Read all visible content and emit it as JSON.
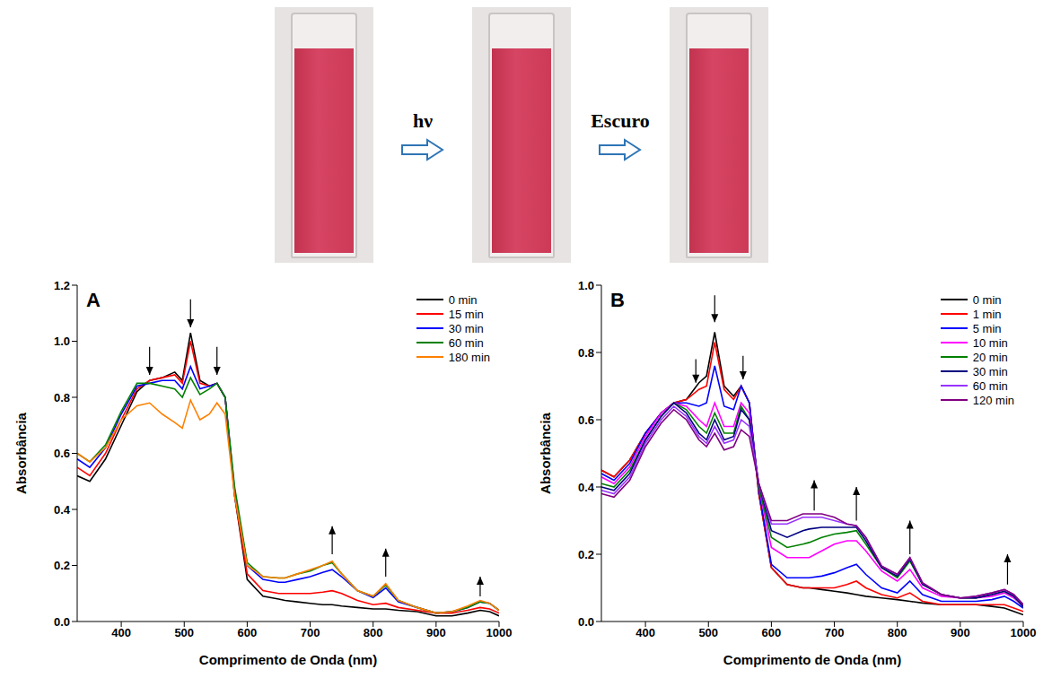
{
  "header": {
    "steps": [
      "hν",
      "Escuro"
    ]
  },
  "chart_data": [
    {
      "type": "line",
      "panel": "A",
      "x_label": "Comprimento de Onda (nm)",
      "y_label": "Absorbância",
      "x": [
        330,
        350,
        375,
        400,
        425,
        445,
        465,
        485,
        497,
        510,
        525,
        540,
        552,
        565,
        580,
        600,
        625,
        650,
        660,
        680,
        700,
        720,
        735,
        750,
        775,
        800,
        820,
        840,
        870,
        900,
        925,
        950,
        970,
        985,
        1000
      ],
      "series": [
        {
          "name": "0 min",
          "color": "#000000",
          "values": [
            0.52,
            0.5,
            0.58,
            0.7,
            0.82,
            0.86,
            0.87,
            0.89,
            0.86,
            1.03,
            0.86,
            0.84,
            0.85,
            0.8,
            0.45,
            0.15,
            0.09,
            0.08,
            0.075,
            0.07,
            0.065,
            0.06,
            0.06,
            0.055,
            0.05,
            0.045,
            0.045,
            0.04,
            0.035,
            0.02,
            0.02,
            0.03,
            0.04,
            0.035,
            0.02
          ]
        },
        {
          "name": "15 min",
          "color": "#ff0000",
          "values": [
            0.55,
            0.52,
            0.6,
            0.72,
            0.83,
            0.86,
            0.87,
            0.88,
            0.85,
            1.0,
            0.85,
            0.84,
            0.85,
            0.8,
            0.45,
            0.17,
            0.11,
            0.1,
            0.1,
            0.1,
            0.1,
            0.105,
            0.11,
            0.1,
            0.075,
            0.06,
            0.065,
            0.05,
            0.04,
            0.03,
            0.03,
            0.04,
            0.05,
            0.045,
            0.03
          ]
        },
        {
          "name": "30 min",
          "color": "#0000ff",
          "values": [
            0.58,
            0.55,
            0.62,
            0.74,
            0.84,
            0.85,
            0.86,
            0.86,
            0.83,
            0.91,
            0.83,
            0.84,
            0.85,
            0.8,
            0.47,
            0.2,
            0.15,
            0.14,
            0.14,
            0.15,
            0.16,
            0.175,
            0.185,
            0.16,
            0.11,
            0.085,
            0.12,
            0.07,
            0.05,
            0.03,
            0.035,
            0.05,
            0.07,
            0.065,
            0.04
          ]
        },
        {
          "name": "60 min",
          "color": "#008000",
          "values": [
            0.6,
            0.57,
            0.63,
            0.75,
            0.85,
            0.85,
            0.84,
            0.83,
            0.8,
            0.87,
            0.81,
            0.83,
            0.85,
            0.8,
            0.48,
            0.21,
            0.16,
            0.155,
            0.155,
            0.17,
            0.18,
            0.2,
            0.21,
            0.17,
            0.11,
            0.09,
            0.13,
            0.075,
            0.05,
            0.03,
            0.035,
            0.05,
            0.07,
            0.065,
            0.04
          ]
        },
        {
          "name": "180 min",
          "color": "#ff8000",
          "values": [
            0.6,
            0.57,
            0.62,
            0.72,
            0.77,
            0.78,
            0.74,
            0.71,
            0.69,
            0.79,
            0.72,
            0.74,
            0.78,
            0.74,
            0.45,
            0.2,
            0.16,
            0.155,
            0.155,
            0.17,
            0.185,
            0.2,
            0.215,
            0.17,
            0.11,
            0.09,
            0.135,
            0.075,
            0.05,
            0.03,
            0.035,
            0.055,
            0.075,
            0.065,
            0.04
          ]
        }
      ],
      "xlim": [
        330,
        1000
      ],
      "xticks": [
        400,
        500,
        600,
        700,
        800,
        900,
        1000
      ],
      "ylim": [
        0,
        1.2
      ],
      "yticks": [
        {
          "value": 0,
          "label": "0.0"
        },
        0.2,
        0.4,
        0.6,
        0.8,
        {
          "value": 1,
          "label": "1.0"
        },
        1.2
      ],
      "grid": false,
      "legend": "upper right",
      "arrows": [
        {
          "x": 445,
          "from": 0.98,
          "to": 0.88
        },
        {
          "x": 510,
          "from": 1.15,
          "to": 1.05
        },
        {
          "x": 552,
          "from": 0.98,
          "to": 0.88
        },
        {
          "x": 735,
          "from": 0.24,
          "to": 0.34
        },
        {
          "x": 820,
          "from": 0.16,
          "to": 0.26
        },
        {
          "x": 970,
          "from": 0.09,
          "to": 0.16
        }
      ]
    },
    {
      "type": "line",
      "panel": "B",
      "x_label": "Comprimento de Onda (nm)",
      "y_label": "Absorbância",
      "x": [
        330,
        350,
        375,
        400,
        425,
        445,
        465,
        485,
        497,
        510,
        525,
        540,
        552,
        565,
        580,
        600,
        625,
        650,
        660,
        680,
        700,
        720,
        735,
        750,
        775,
        800,
        820,
        840,
        870,
        900,
        925,
        950,
        970,
        985,
        1000
      ],
      "series": [
        {
          "name": "0 min",
          "color": "#000000",
          "values": [
            0.45,
            0.43,
            0.48,
            0.56,
            0.62,
            0.65,
            0.66,
            0.71,
            0.73,
            0.86,
            0.7,
            0.67,
            0.7,
            0.65,
            0.38,
            0.16,
            0.11,
            0.1,
            0.1,
            0.095,
            0.09,
            0.085,
            0.08,
            0.075,
            0.07,
            0.065,
            0.06,
            0.055,
            0.05,
            0.05,
            0.05,
            0.045,
            0.04,
            0.03,
            0.02
          ]
        },
        {
          "name": "1 min",
          "color": "#ff0000",
          "values": [
            0.45,
            0.43,
            0.48,
            0.56,
            0.62,
            0.65,
            0.66,
            0.69,
            0.7,
            0.83,
            0.69,
            0.66,
            0.7,
            0.65,
            0.38,
            0.16,
            0.11,
            0.1,
            0.1,
            0.1,
            0.1,
            0.11,
            0.12,
            0.1,
            0.08,
            0.07,
            0.085,
            0.06,
            0.05,
            0.05,
            0.05,
            0.05,
            0.05,
            0.04,
            0.03
          ]
        },
        {
          "name": "5 min",
          "color": "#0000ff",
          "values": [
            0.44,
            0.42,
            0.47,
            0.56,
            0.62,
            0.65,
            0.65,
            0.64,
            0.65,
            0.76,
            0.64,
            0.63,
            0.7,
            0.65,
            0.39,
            0.17,
            0.13,
            0.13,
            0.13,
            0.135,
            0.145,
            0.16,
            0.17,
            0.14,
            0.1,
            0.085,
            0.12,
            0.08,
            0.06,
            0.06,
            0.06,
            0.065,
            0.075,
            0.06,
            0.04
          ]
        },
        {
          "name": "10 min",
          "color": "#ff00ff",
          "values": [
            0.43,
            0.41,
            0.46,
            0.55,
            0.62,
            0.65,
            0.64,
            0.6,
            0.58,
            0.65,
            0.58,
            0.58,
            0.65,
            0.62,
            0.4,
            0.22,
            0.19,
            0.19,
            0.19,
            0.21,
            0.23,
            0.24,
            0.24,
            0.21,
            0.15,
            0.12,
            0.155,
            0.1,
            0.075,
            0.07,
            0.07,
            0.075,
            0.085,
            0.07,
            0.045
          ]
        },
        {
          "name": "20 min",
          "color": "#008000",
          "values": [
            0.41,
            0.4,
            0.45,
            0.54,
            0.61,
            0.65,
            0.63,
            0.58,
            0.56,
            0.62,
            0.56,
            0.56,
            0.64,
            0.6,
            0.4,
            0.25,
            0.22,
            0.23,
            0.235,
            0.25,
            0.26,
            0.265,
            0.27,
            0.23,
            0.16,
            0.13,
            0.18,
            0.11,
            0.08,
            0.07,
            0.07,
            0.08,
            0.09,
            0.075,
            0.045
          ]
        },
        {
          "name": "30 min",
          "color": "#000080",
          "values": [
            0.4,
            0.39,
            0.44,
            0.54,
            0.61,
            0.65,
            0.62,
            0.56,
            0.54,
            0.6,
            0.54,
            0.55,
            0.63,
            0.6,
            0.41,
            0.27,
            0.25,
            0.27,
            0.275,
            0.28,
            0.28,
            0.28,
            0.28,
            0.24,
            0.16,
            0.135,
            0.185,
            0.11,
            0.08,
            0.07,
            0.07,
            0.08,
            0.09,
            0.075,
            0.045
          ]
        },
        {
          "name": "60 min",
          "color": "#9933ff",
          "values": [
            0.39,
            0.38,
            0.43,
            0.53,
            0.6,
            0.64,
            0.61,
            0.55,
            0.53,
            0.58,
            0.53,
            0.54,
            0.6,
            0.58,
            0.41,
            0.29,
            0.29,
            0.31,
            0.31,
            0.31,
            0.3,
            0.29,
            0.285,
            0.25,
            0.165,
            0.14,
            0.19,
            0.115,
            0.08,
            0.07,
            0.075,
            0.085,
            0.095,
            0.08,
            0.05
          ]
        },
        {
          "name": "120 min",
          "color": "#800080",
          "values": [
            0.38,
            0.37,
            0.42,
            0.52,
            0.59,
            0.63,
            0.6,
            0.54,
            0.52,
            0.56,
            0.51,
            0.52,
            0.57,
            0.55,
            0.41,
            0.3,
            0.3,
            0.32,
            0.32,
            0.32,
            0.31,
            0.29,
            0.285,
            0.25,
            0.165,
            0.14,
            0.19,
            0.115,
            0.08,
            0.07,
            0.075,
            0.085,
            0.095,
            0.08,
            0.05
          ]
        }
      ],
      "xlim": [
        330,
        1000
      ],
      "xticks": [
        400,
        500,
        600,
        700,
        800,
        900,
        1000
      ],
      "ylim": [
        0,
        1.0
      ],
      "yticks": [
        {
          "value": 0,
          "label": "0.0"
        },
        0.2,
        0.4,
        0.6,
        0.8,
        {
          "value": 1,
          "label": "1.0"
        }
      ],
      "grid": false,
      "legend": "upper right",
      "arrows": [
        {
          "x": 480,
          "from": 0.78,
          "to": 0.71
        },
        {
          "x": 510,
          "from": 0.97,
          "to": 0.89
        },
        {
          "x": 555,
          "from": 0.79,
          "to": 0.72
        },
        {
          "x": 668,
          "from": 0.33,
          "to": 0.42
        },
        {
          "x": 735,
          "from": 0.3,
          "to": 0.4
        },
        {
          "x": 820,
          "from": 0.2,
          "to": 0.3
        },
        {
          "x": 975,
          "from": 0.11,
          "to": 0.2
        }
      ]
    }
  ]
}
